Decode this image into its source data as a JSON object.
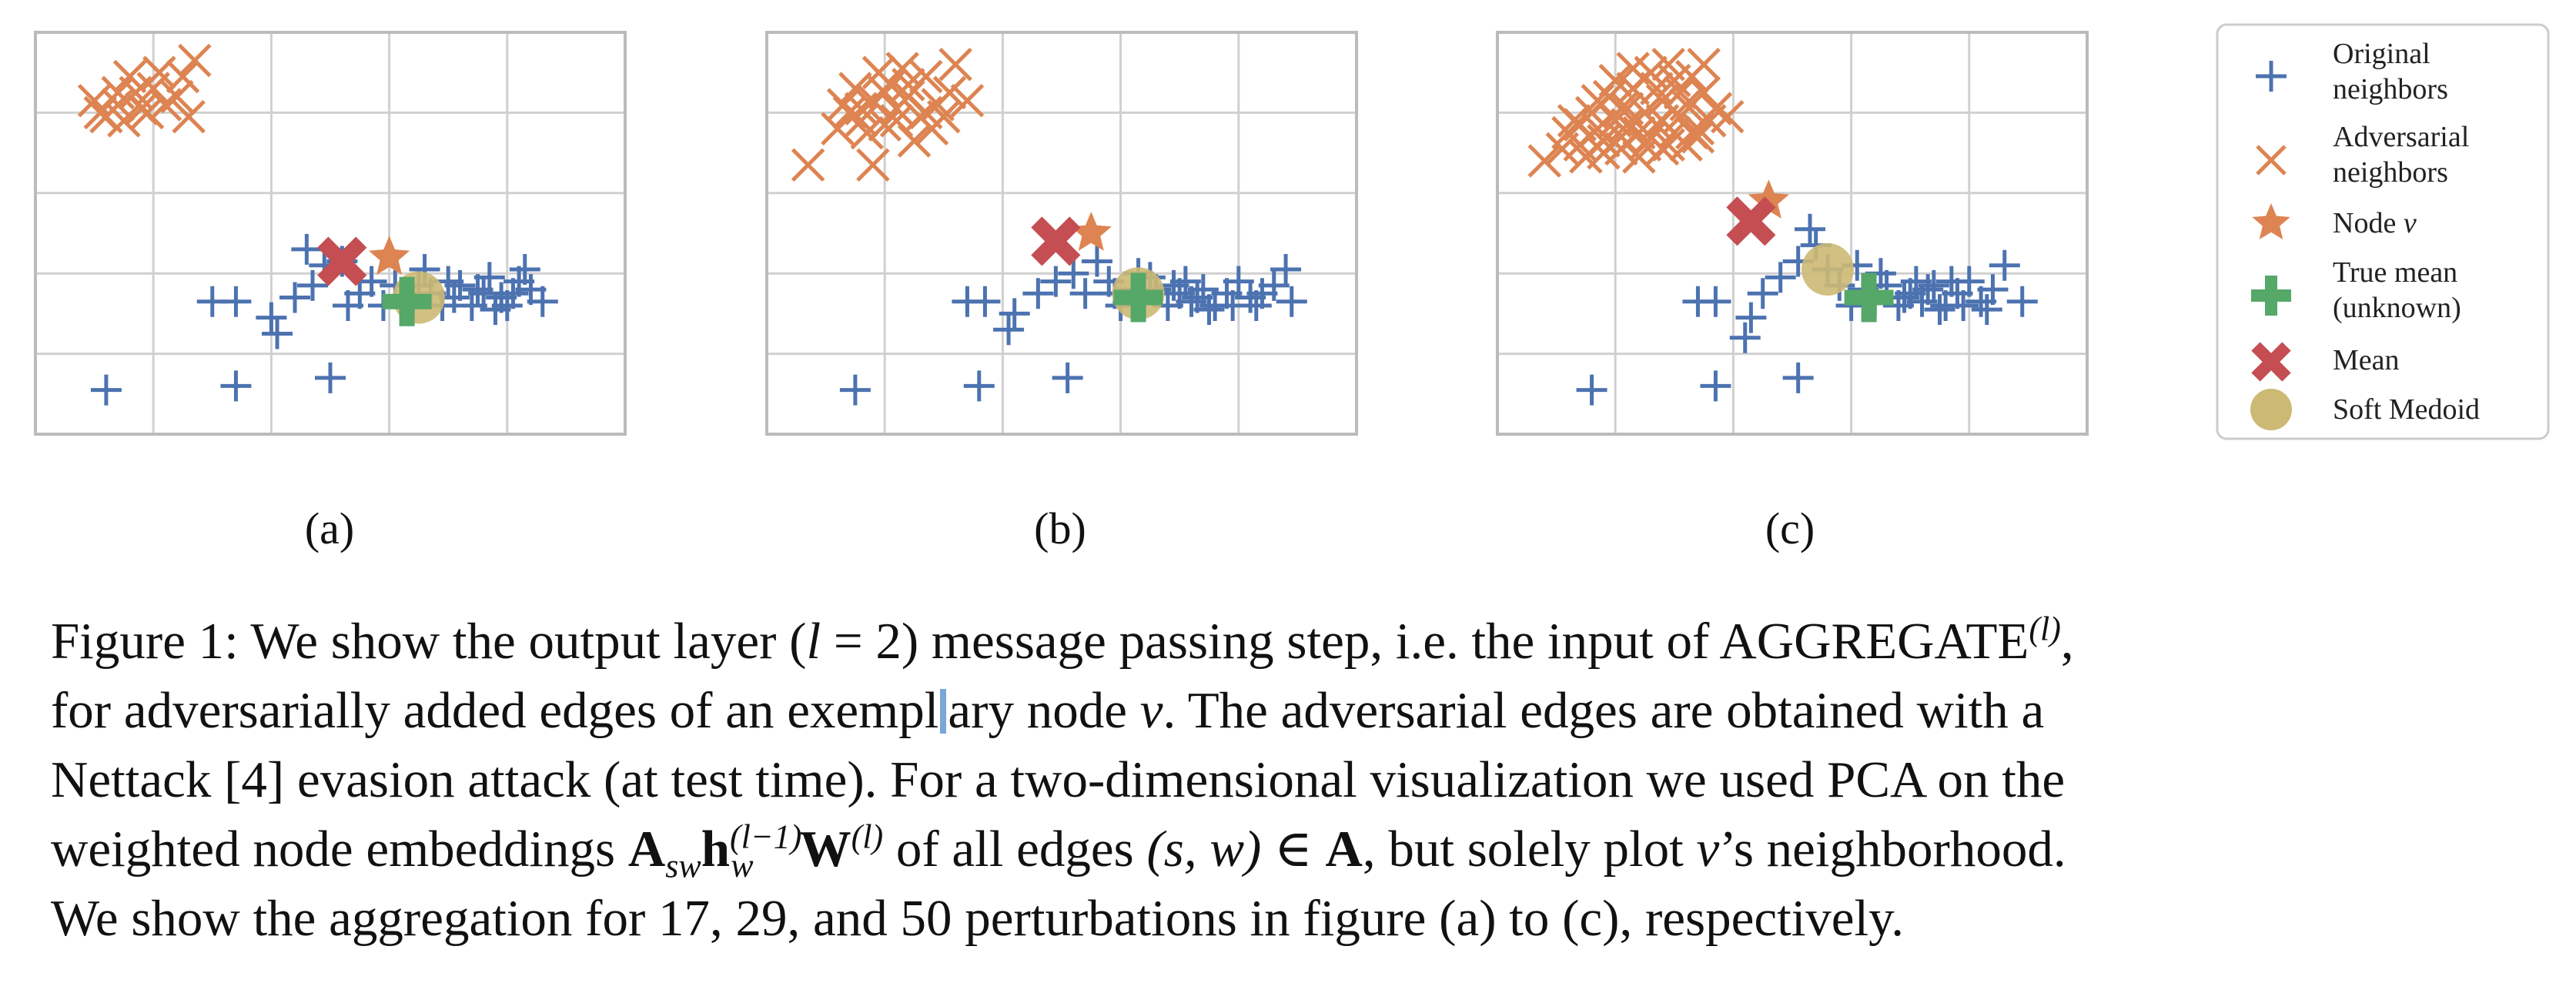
{
  "colors": {
    "original": "#4c72b0",
    "adversarial": "#dd8452",
    "node": "#dd8452",
    "true_mean": "#55a868",
    "mean": "#c44e52",
    "soft_medoid": "#ccb974",
    "grid": "#d0d0d0",
    "frame": "#bbbbbb"
  },
  "subfigure_labels": [
    "(a)",
    "(b)",
    "(c)"
  ],
  "legend": {
    "items": [
      {
        "key": "original",
        "icon": "plus-marker",
        "lines": [
          "Original",
          "neighbors"
        ]
      },
      {
        "key": "adversarial",
        "icon": "x-marker",
        "lines": [
          "Adversarial",
          "neighbors"
        ]
      },
      {
        "key": "node",
        "icon": "star-marker",
        "lines": [
          "Node v"
        ]
      },
      {
        "key": "true_mean",
        "icon": "thick-plus-marker",
        "lines": [
          "True mean",
          "(unknown)"
        ]
      },
      {
        "key": "mean",
        "icon": "thick-x-marker",
        "lines": [
          "Mean"
        ]
      },
      {
        "key": "soft_medoid",
        "icon": "circle-marker",
        "lines": [
          "Soft Medoid"
        ]
      }
    ]
  },
  "chart_data": [
    {
      "type": "scatter",
      "label": "(a)",
      "xlim": [
        0,
        5
      ],
      "ylim": [
        0,
        5
      ],
      "grid": true,
      "legend": "none",
      "original_neighbors": [
        [
          0.6,
          0.55
        ],
        [
          1.7,
          0.6
        ],
        [
          2.5,
          0.7
        ],
        [
          1.5,
          1.65
        ],
        [
          1.7,
          1.65
        ],
        [
          2.0,
          1.45
        ],
        [
          2.05,
          1.25
        ],
        [
          2.2,
          1.7
        ],
        [
          2.35,
          1.85
        ],
        [
          2.3,
          2.3
        ],
        [
          2.45,
          2.1
        ],
        [
          2.6,
          2.15
        ],
        [
          2.75,
          1.75
        ],
        [
          2.85,
          1.9
        ],
        [
          2.95,
          1.6
        ],
        [
          3.05,
          1.85
        ],
        [
          3.1,
          1.7
        ],
        [
          3.2,
          1.65
        ],
        [
          3.25,
          1.85
        ],
        [
          3.35,
          1.75
        ],
        [
          3.45,
          1.6
        ],
        [
          3.55,
          1.7
        ],
        [
          3.6,
          1.85
        ],
        [
          3.7,
          1.6
        ],
        [
          3.8,
          1.75
        ],
        [
          3.85,
          1.95
        ],
        [
          3.95,
          1.7
        ],
        [
          4.05,
          1.75
        ],
        [
          4.1,
          1.9
        ],
        [
          4.2,
          1.8
        ],
        [
          4.3,
          1.65
        ],
        [
          4.0,
          1.6
        ],
        [
          3.75,
          1.8
        ],
        [
          4.15,
          2.05
        ],
        [
          2.65,
          1.6
        ],
        [
          3.3,
          2.05
        ],
        [
          3.5,
          1.9
        ],
        [
          3.9,
          1.55
        ]
      ],
      "adversarial_neighbors": [
        [
          0.5,
          4.15
        ],
        [
          0.6,
          3.95
        ],
        [
          0.7,
          4.1
        ],
        [
          0.75,
          3.9
        ],
        [
          0.85,
          4.25
        ],
        [
          0.95,
          4.0
        ],
        [
          1.0,
          4.3
        ],
        [
          1.05,
          4.5
        ],
        [
          0.8,
          4.45
        ],
        [
          1.2,
          4.2
        ],
        [
          1.3,
          3.95
        ],
        [
          1.25,
          4.45
        ],
        [
          1.35,
          4.65
        ],
        [
          0.7,
          4.25
        ],
        [
          0.9,
          4.05
        ],
        [
          1.1,
          4.1
        ],
        [
          0.55,
          4.0
        ]
      ],
      "node_v": [
        3.0,
        2.2
      ],
      "true_mean": [
        3.15,
        1.65
      ],
      "mean": [
        2.6,
        2.15
      ],
      "soft_medoid": [
        3.25,
        1.7
      ]
    },
    {
      "type": "scatter",
      "label": "(b)",
      "xlim": [
        0,
        5
      ],
      "ylim": [
        0,
        5
      ],
      "grid": true,
      "legend": "none",
      "original_neighbors": [
        [
          0.75,
          0.55
        ],
        [
          1.8,
          0.6
        ],
        [
          2.55,
          0.7
        ],
        [
          1.7,
          1.65
        ],
        [
          1.85,
          1.65
        ],
        [
          2.05,
          1.3
        ],
        [
          2.1,
          1.5
        ],
        [
          2.3,
          1.75
        ],
        [
          2.45,
          1.9
        ],
        [
          2.6,
          2.0
        ],
        [
          2.7,
          1.75
        ],
        [
          2.9,
          1.9
        ],
        [
          3.0,
          1.6
        ],
        [
          3.1,
          1.8
        ],
        [
          3.2,
          1.65
        ],
        [
          3.3,
          1.8
        ],
        [
          3.4,
          1.6
        ],
        [
          3.5,
          1.75
        ],
        [
          3.6,
          1.65
        ],
        [
          3.7,
          1.8
        ],
        [
          3.8,
          1.6
        ],
        [
          3.9,
          1.75
        ],
        [
          4.0,
          1.9
        ],
        [
          4.1,
          1.7
        ],
        [
          4.2,
          1.75
        ],
        [
          4.3,
          1.85
        ],
        [
          4.4,
          2.05
        ],
        [
          4.45,
          1.65
        ],
        [
          2.8,
          2.15
        ],
        [
          3.25,
          1.95
        ],
        [
          3.55,
          1.9
        ],
        [
          3.75,
          1.55
        ],
        [
          3.95,
          1.6
        ],
        [
          4.15,
          1.6
        ],
        [
          2.95,
          1.75
        ],
        [
          3.45,
          1.85
        ],
        [
          3.15,
          2.0
        ],
        [
          3.65,
          1.7
        ]
      ],
      "adversarial_neighbors": [
        [
          0.35,
          3.35
        ],
        [
          0.6,
          3.8
        ],
        [
          0.7,
          4.0
        ],
        [
          0.8,
          3.9
        ],
        [
          0.9,
          4.15
        ],
        [
          1.0,
          3.85
        ],
        [
          1.05,
          4.35
        ],
        [
          1.1,
          4.05
        ],
        [
          1.2,
          4.2
        ],
        [
          1.3,
          3.95
        ],
        [
          1.35,
          4.45
        ],
        [
          1.4,
          3.8
        ],
        [
          1.45,
          4.1
        ],
        [
          1.55,
          4.25
        ],
        [
          1.7,
          4.15
        ],
        [
          0.75,
          4.3
        ],
        [
          0.95,
          4.5
        ],
        [
          1.15,
          4.55
        ],
        [
          0.85,
          3.75
        ],
        [
          1.25,
          3.65
        ],
        [
          0.9,
          3.35
        ],
        [
          1.6,
          4.6
        ],
        [
          0.65,
          4.1
        ],
        [
          1.0,
          4.25
        ],
        [
          1.5,
          3.95
        ],
        [
          1.2,
          4.35
        ],
        [
          0.8,
          4.05
        ],
        [
          1.35,
          4.0
        ],
        [
          1.1,
          3.9
        ]
      ],
      "node_v": [
        2.75,
        2.5
      ],
      "true_mean": [
        3.15,
        1.7
      ],
      "mean": [
        2.45,
        2.4
      ],
      "soft_medoid": [
        3.15,
        1.75
      ]
    },
    {
      "type": "scatter",
      "label": "(c)",
      "xlim": [
        0,
        5
      ],
      "ylim": [
        0,
        5
      ],
      "grid": true,
      "legend": "none",
      "original_neighbors": [
        [
          0.8,
          0.55
        ],
        [
          1.85,
          0.6
        ],
        [
          2.55,
          0.7
        ],
        [
          1.7,
          1.65
        ],
        [
          1.85,
          1.65
        ],
        [
          2.1,
          1.2
        ],
        [
          2.15,
          1.45
        ],
        [
          2.25,
          1.75
        ],
        [
          2.4,
          1.95
        ],
        [
          2.55,
          2.15
        ],
        [
          2.7,
          2.35
        ],
        [
          2.8,
          2.05
        ],
        [
          2.9,
          1.85
        ],
        [
          3.0,
          1.6
        ],
        [
          3.1,
          1.8
        ],
        [
          3.2,
          1.65
        ],
        [
          3.3,
          1.85
        ],
        [
          3.4,
          1.6
        ],
        [
          3.5,
          1.75
        ],
        [
          3.6,
          1.65
        ],
        [
          3.7,
          1.85
        ],
        [
          3.8,
          1.6
        ],
        [
          3.9,
          1.75
        ],
        [
          4.0,
          1.9
        ],
        [
          4.1,
          1.65
        ],
        [
          4.2,
          1.8
        ],
        [
          4.3,
          2.1
        ],
        [
          4.45,
          1.65
        ],
        [
          3.25,
          2.0
        ],
        [
          3.55,
          1.9
        ],
        [
          3.75,
          1.55
        ],
        [
          3.95,
          1.6
        ],
        [
          4.15,
          1.55
        ],
        [
          3.45,
          1.7
        ],
        [
          3.65,
          1.8
        ],
        [
          2.65,
          2.55
        ],
        [
          3.05,
          2.1
        ],
        [
          3.85,
          1.9
        ]
      ],
      "adversarial_neighbors": [
        [
          0.4,
          3.4
        ],
        [
          0.55,
          3.55
        ],
        [
          0.6,
          3.75
        ],
        [
          0.65,
          3.9
        ],
        [
          0.7,
          3.6
        ],
        [
          0.75,
          3.45
        ],
        [
          0.8,
          4.0
        ],
        [
          0.85,
          3.8
        ],
        [
          0.9,
          3.65
        ],
        [
          0.95,
          4.2
        ],
        [
          1.0,
          3.9
        ],
        [
          1.05,
          3.55
        ],
        [
          1.1,
          4.05
        ],
        [
          1.15,
          4.3
        ],
        [
          1.2,
          3.75
        ],
        [
          1.25,
          4.0
        ],
        [
          1.3,
          4.5
        ],
        [
          1.35,
          3.85
        ],
        [
          1.4,
          4.15
        ],
        [
          1.45,
          3.6
        ],
        [
          1.5,
          4.4
        ],
        [
          1.55,
          3.95
        ],
        [
          1.6,
          4.1
        ],
        [
          1.65,
          4.45
        ],
        [
          1.7,
          3.8
        ],
        [
          1.75,
          4.25
        ],
        [
          1.8,
          3.9
        ],
        [
          1.85,
          4.05
        ],
        [
          1.45,
          4.6
        ],
        [
          0.9,
          3.5
        ],
        [
          1.05,
          3.7
        ],
        [
          1.2,
          3.45
        ],
        [
          1.3,
          3.7
        ],
        [
          1.4,
          3.55
        ],
        [
          1.5,
          3.75
        ],
        [
          1.6,
          3.6
        ],
        [
          1.7,
          3.7
        ],
        [
          1.1,
          3.85
        ],
        [
          1.25,
          3.6
        ],
        [
          1.35,
          4.3
        ],
        [
          0.85,
          4.15
        ],
        [
          1.0,
          4.4
        ],
        [
          1.15,
          4.55
        ],
        [
          1.55,
          4.25
        ],
        [
          1.65,
          3.75
        ],
        [
          1.75,
          4.6
        ],
        [
          0.7,
          3.85
        ],
        [
          1.95,
          3.95
        ],
        [
          1.05,
          4.05
        ],
        [
          1.4,
          3.9
        ]
      ],
      "node_v": [
        2.3,
        2.9
      ],
      "true_mean": [
        3.15,
        1.7
      ],
      "mean": [
        2.15,
        2.65
      ],
      "soft_medoid": [
        2.8,
        2.05
      ]
    }
  ],
  "caption": {
    "line1_prefix": "Figure 1: We show the output layer (",
    "line1_math": "l",
    "line1_eq": " = 2",
    "line1_mid": ") message passing step, i.e. the input of AGGREGATE",
    "line1_sup": "(l)",
    "line1_end": ",",
    "line2_a": "for adversarially added edges of an exempl",
    "line2_b": "ary node ",
    "line2_math": "v",
    "line2_end": ".  The adversarial edges are obtained with a",
    "line3": "Nettack [4] evasion attack (at test time). For a two-dimensional visualization we used PCA on the",
    "line4_a": "weighted node embeddings ",
    "line4_A": "A",
    "line4_A_sub": "sw",
    "line4_h": "h",
    "line4_h_sup": "(l−1)",
    "line4_h_sub": "w",
    "line4_W": "W",
    "line4_W_sup": "(l)",
    "line4_b": " of all edges ",
    "line4_sw": "(s, w) ∈ ",
    "line4_A2": "A",
    "line4_c": ", but solely plot ",
    "line4_v": "v",
    "line4_d": "’s neighborhood.",
    "line5": "We show the aggregation for 17, 29, and 50 perturbations in figure (a) to (c), respectively."
  }
}
